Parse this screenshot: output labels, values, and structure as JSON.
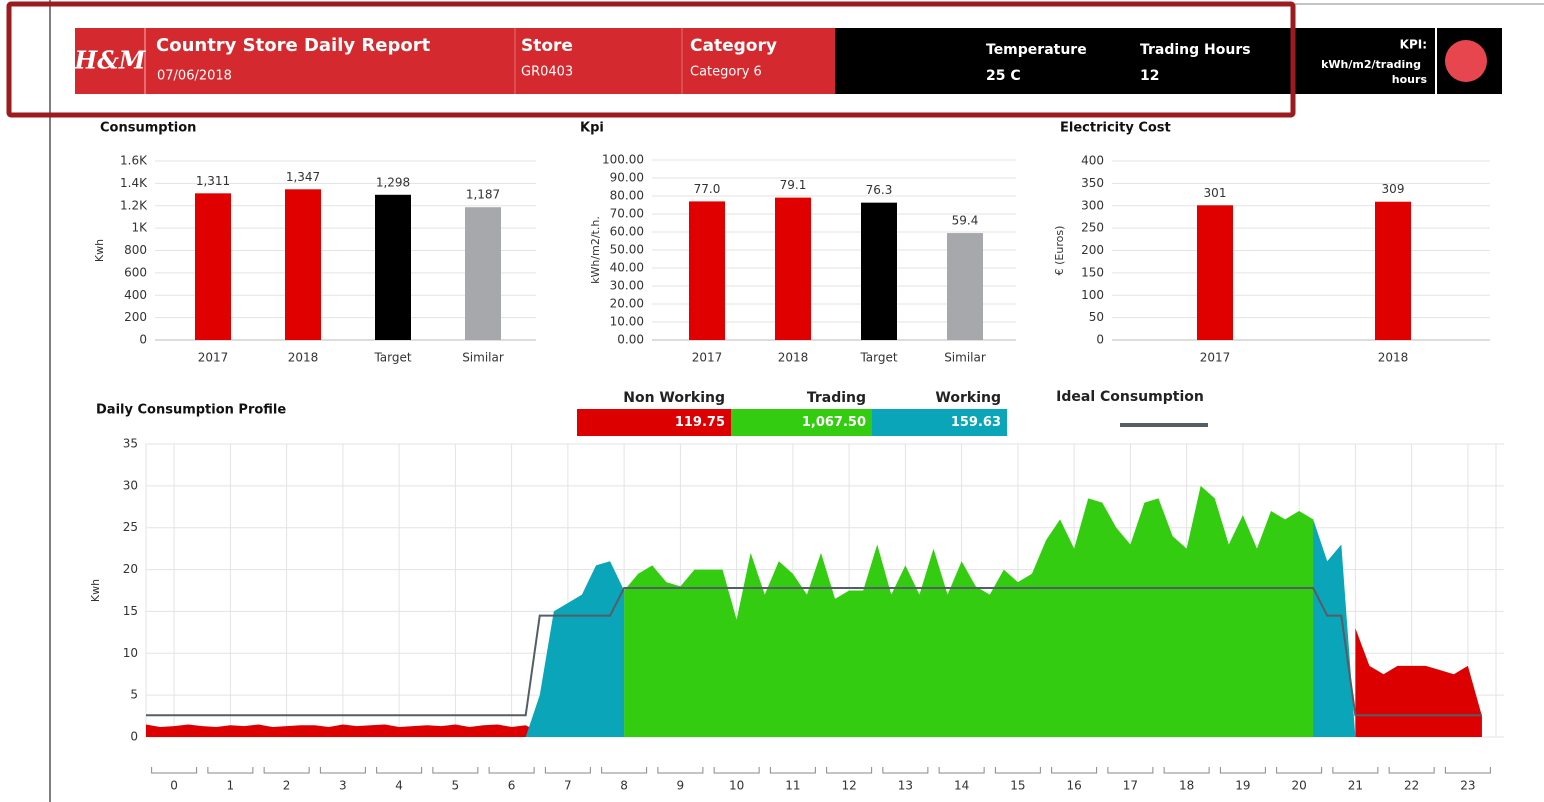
{
  "header": {
    "logo": "H&M",
    "title": "Country Store Daily Report",
    "date": "07/06/2018",
    "store_label": "Store",
    "store": "GR0403",
    "category_label": "Category",
    "category": "Category 6",
    "temperature_label": "Temperature",
    "temperature": "25 C",
    "trading_hours_label": "Trading Hours",
    "trading_hours": "12",
    "kpi_label": "KPI:",
    "kpi_unit_lines": [
      "kWh/m2/trading",
      "hours"
    ]
  },
  "chart_data": [
    {
      "type": "bar",
      "title": "Consumption",
      "ylabel": "Kwh",
      "categories": [
        "2017",
        "2018",
        "Target",
        "Similar"
      ],
      "values": [
        1311,
        1347,
        1298,
        1187
      ],
      "value_labels": [
        "1,311",
        "1,347",
        "1,298",
        "1,187"
      ],
      "colors": [
        "#e00000",
        "#e00000",
        "#000000",
        "#a6a8ab"
      ],
      "ylim": [
        0,
        1600
      ],
      "yticks": [
        0,
        200,
        400,
        600,
        800,
        {
          "value": 1000,
          "label": "1K"
        },
        {
          "value": 1200,
          "label": "1.2K"
        },
        {
          "value": 1400,
          "label": "1.4K"
        },
        {
          "value": 1600,
          "label": "1.6K"
        }
      ],
      "grid": true
    },
    {
      "type": "bar",
      "title": "Kpi",
      "ylabel": "kWh/m2/t.h.",
      "categories": [
        "2017",
        "2018",
        "Target",
        "Similar"
      ],
      "values": [
        77.0,
        79.1,
        76.3,
        59.4
      ],
      "value_labels": [
        "77.0",
        "79.1",
        "76.3",
        "59.4"
      ],
      "colors": [
        "#e00000",
        "#e00000",
        "#000000",
        "#a6a8ab"
      ],
      "ylim": [
        0,
        100
      ],
      "yticks": [
        {
          "value": 0,
          "label": "0.00"
        },
        {
          "value": 10,
          "label": "10.00"
        },
        {
          "value": 20,
          "label": "20.00"
        },
        {
          "value": 30,
          "label": "30.00"
        },
        {
          "value": 40,
          "label": "40.00"
        },
        {
          "value": 50,
          "label": "50.00"
        },
        {
          "value": 60,
          "label": "60.00"
        },
        {
          "value": 70,
          "label": "70.00"
        },
        {
          "value": 80,
          "label": "80.00"
        },
        {
          "value": 90,
          "label": "90.00"
        },
        {
          "value": 100,
          "label": "100.00"
        }
      ],
      "grid": true
    },
    {
      "type": "bar",
      "title": "Electricity Cost",
      "ylabel": "€ (Euros)",
      "categories": [
        "2017",
        "2018"
      ],
      "values": [
        301,
        309
      ],
      "colors": [
        "#e00000",
        "#e00000"
      ],
      "ylim": [
        0,
        400
      ],
      "yticks": [
        0,
        50,
        100,
        150,
        200,
        250,
        300,
        350,
        400
      ],
      "grid": true
    },
    {
      "type": "area",
      "title": "Daily Consumption Profile",
      "ylabel": "Kwh",
      "x": [
        0,
        0.25,
        0.5,
        0.75,
        1,
        1.25,
        1.5,
        1.75,
        2,
        2.25,
        2.5,
        2.75,
        3,
        3.25,
        3.5,
        3.75,
        4,
        4.25,
        4.5,
        4.75,
        5,
        5.25,
        5.5,
        5.75,
        6,
        6.25,
        6.5,
        6.75,
        7,
        7.25,
        7.5,
        7.75,
        8,
        8.25,
        8.5,
        8.75,
        9,
        9.25,
        9.5,
        9.75,
        10,
        10.25,
        10.5,
        10.75,
        11,
        11.25,
        11.5,
        11.75,
        12,
        12.25,
        12.5,
        12.75,
        13,
        13.25,
        13.5,
        13.75,
        14,
        14.25,
        14.5,
        14.75,
        15,
        15.25,
        15.5,
        15.75,
        16,
        16.25,
        16.5,
        16.75,
        17,
        17.25,
        17.5,
        17.75,
        18,
        18.25,
        18.5,
        18.75,
        19,
        19.25,
        19.5,
        19.75,
        20,
        20.25,
        20.5,
        20.75,
        21,
        21.25,
        21.5,
        21.75,
        22,
        22.25,
        22.5,
        22.75,
        23,
        23.25,
        23.5,
        23.75
      ],
      "series": [
        {
          "name": "Non Working",
          "color": "#dd0000",
          "total": 119.75,
          "values": [
            1.5,
            1.2,
            1.3,
            1.5,
            1.3,
            1.2,
            1.4,
            1.3,
            1.5,
            1.2,
            1.3,
            1.4,
            1.4,
            1.2,
            1.5,
            1.3,
            1.4,
            1.5,
            1.2,
            1.3,
            1.4,
            1.3,
            1.5,
            1.2,
            1.4,
            1.5,
            1.2,
            1.4,
            0.5,
            null,
            null,
            null,
            null,
            null,
            null,
            null,
            null,
            null,
            null,
            null,
            null,
            null,
            null,
            null,
            null,
            null,
            null,
            null,
            null,
            null,
            null,
            null,
            null,
            null,
            null,
            null,
            null,
            null,
            null,
            null,
            null,
            null,
            null,
            null,
            null,
            null,
            null,
            null,
            null,
            null,
            null,
            null,
            null,
            null,
            null,
            null,
            null,
            null,
            null,
            null,
            null,
            null,
            null,
            null,
            null,
            null,
            13,
            8.5,
            7.5,
            8.5,
            8.5,
            8.5,
            8,
            7.5,
            8.5,
            2.5
          ]
        },
        {
          "name": "Trading",
          "color": "#33cc11",
          "total": 1067.5,
          "total_label": "1,067.50",
          "values": [
            null,
            null,
            null,
            null,
            null,
            null,
            null,
            null,
            null,
            null,
            null,
            null,
            null,
            null,
            null,
            null,
            null,
            null,
            null,
            null,
            null,
            null,
            null,
            null,
            null,
            null,
            null,
            null,
            null,
            null,
            null,
            null,
            null,
            null,
            17.5,
            19.5,
            20.5,
            18.5,
            18,
            20,
            20,
            20,
            14,
            22,
            17,
            21,
            19.5,
            17,
            22,
            16.5,
            17.5,
            17.5,
            23,
            17,
            20.5,
            17,
            22.5,
            17,
            21,
            18,
            17,
            20,
            18.5,
            19.5,
            23.5,
            26,
            22.5,
            28.5,
            28,
            25,
            23,
            28,
            28.5,
            24,
            22.5,
            30,
            28.5,
            23,
            26.5,
            22.5,
            27,
            26,
            27,
            26,
            0,
            null,
            null,
            null,
            null,
            null,
            null,
            null,
            null,
            null,
            null,
            null
          ]
        },
        {
          "name": "Working",
          "color": "#0aa5b8",
          "total": 159.63,
          "values": [
            null,
            null,
            null,
            null,
            null,
            null,
            null,
            null,
            null,
            null,
            null,
            null,
            null,
            null,
            null,
            null,
            null,
            null,
            null,
            null,
            null,
            null,
            null,
            null,
            null,
            null,
            null,
            0,
            5,
            15,
            16,
            17,
            20.5,
            21,
            17.5,
            null,
            null,
            null,
            null,
            null,
            null,
            null,
            null,
            null,
            null,
            null,
            null,
            null,
            null,
            null,
            null,
            null,
            null,
            null,
            null,
            null,
            null,
            null,
            null,
            null,
            null,
            null,
            null,
            null,
            null,
            null,
            null,
            null,
            null,
            null,
            null,
            null,
            null,
            null,
            null,
            null,
            null,
            null,
            null,
            null,
            null,
            null,
            null,
            26,
            21,
            23,
            0,
            null,
            null,
            null,
            null,
            null,
            null,
            null,
            null,
            null
          ]
        },
        {
          "name": "Ideal Consumption",
          "color": "#555e66",
          "type": "line",
          "values": [
            2.6,
            2.6,
            2.6,
            2.6,
            2.6,
            2.6,
            2.6,
            2.6,
            2.6,
            2.6,
            2.6,
            2.6,
            2.6,
            2.6,
            2.6,
            2.6,
            2.6,
            2.6,
            2.6,
            2.6,
            2.6,
            2.6,
            2.6,
            2.6,
            2.6,
            2.6,
            2.6,
            2.6,
            14.5,
            14.5,
            14.5,
            14.5,
            14.5,
            14.5,
            17.8,
            17.8,
            17.8,
            17.8,
            17.8,
            17.8,
            17.8,
            17.8,
            17.8,
            17.8,
            17.8,
            17.8,
            17.8,
            17.8,
            17.8,
            17.8,
            17.8,
            17.8,
            17.8,
            17.8,
            17.8,
            17.8,
            17.8,
            17.8,
            17.8,
            17.8,
            17.8,
            17.8,
            17.8,
            17.8,
            17.8,
            17.8,
            17.8,
            17.8,
            17.8,
            17.8,
            17.8,
            17.8,
            17.8,
            17.8,
            17.8,
            17.8,
            17.8,
            17.8,
            17.8,
            17.8,
            17.8,
            17.8,
            17.8,
            17.8,
            14.5,
            14.5,
            2.6,
            2.6,
            2.6,
            2.6,
            2.6,
            2.6,
            2.6,
            2.6,
            2.6,
            2.6
          ]
        }
      ],
      "xlim": [
        0,
        24
      ],
      "xticks": [
        {
          "value": 0.5,
          "label": "0"
        },
        {
          "value": 1.5,
          "label": "1"
        },
        {
          "value": 2.5,
          "label": "2"
        },
        {
          "value": 3.5,
          "label": "3"
        },
        {
          "value": 4.5,
          "label": "4"
        },
        {
          "value": 5.5,
          "label": "5"
        },
        {
          "value": 6.5,
          "label": "6"
        },
        {
          "value": 7.5,
          "label": "7"
        },
        {
          "value": 8.5,
          "label": "8"
        },
        {
          "value": 9.5,
          "label": "9"
        },
        {
          "value": 10.5,
          "label": "10"
        },
        {
          "value": 11.5,
          "label": "11"
        },
        {
          "value": 12.5,
          "label": "12"
        },
        {
          "value": 13.5,
          "label": "13"
        },
        {
          "value": 14.5,
          "label": "14"
        },
        {
          "value": 15.5,
          "label": "15"
        },
        {
          "value": 16.5,
          "label": "16"
        },
        {
          "value": 17.5,
          "label": "17"
        },
        {
          "value": 18.5,
          "label": "18"
        },
        {
          "value": 19.5,
          "label": "19"
        },
        {
          "value": 20.5,
          "label": "20"
        },
        {
          "value": 21.5,
          "label": "21"
        },
        {
          "value": 22.5,
          "label": "22"
        },
        {
          "value": 23.5,
          "label": "23"
        }
      ],
      "ylim": [
        0,
        35
      ],
      "yticks": [
        0,
        5,
        10,
        15,
        20,
        25,
        30,
        35
      ],
      "grid": true
    }
  ]
}
